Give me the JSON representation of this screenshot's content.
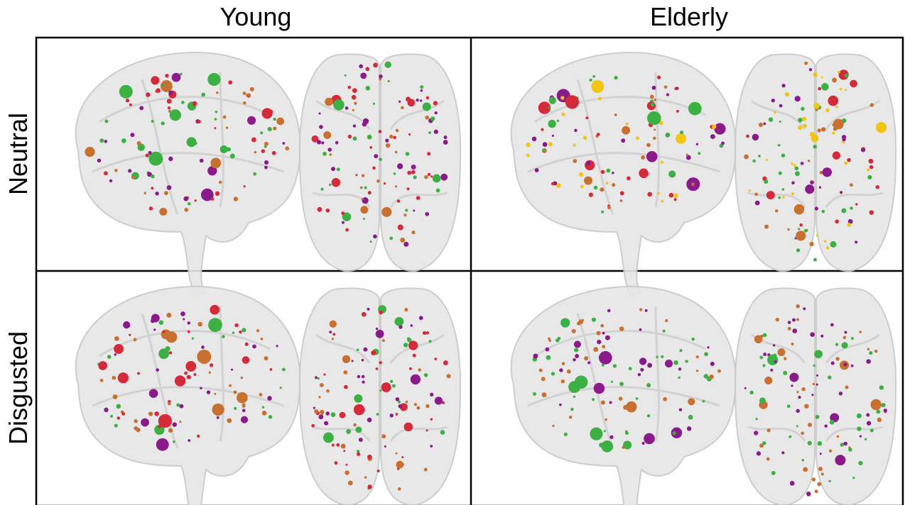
{
  "columns": [
    "Young",
    "Elderly"
  ],
  "rows": [
    "Neutral",
    "Disgusted"
  ]
}
